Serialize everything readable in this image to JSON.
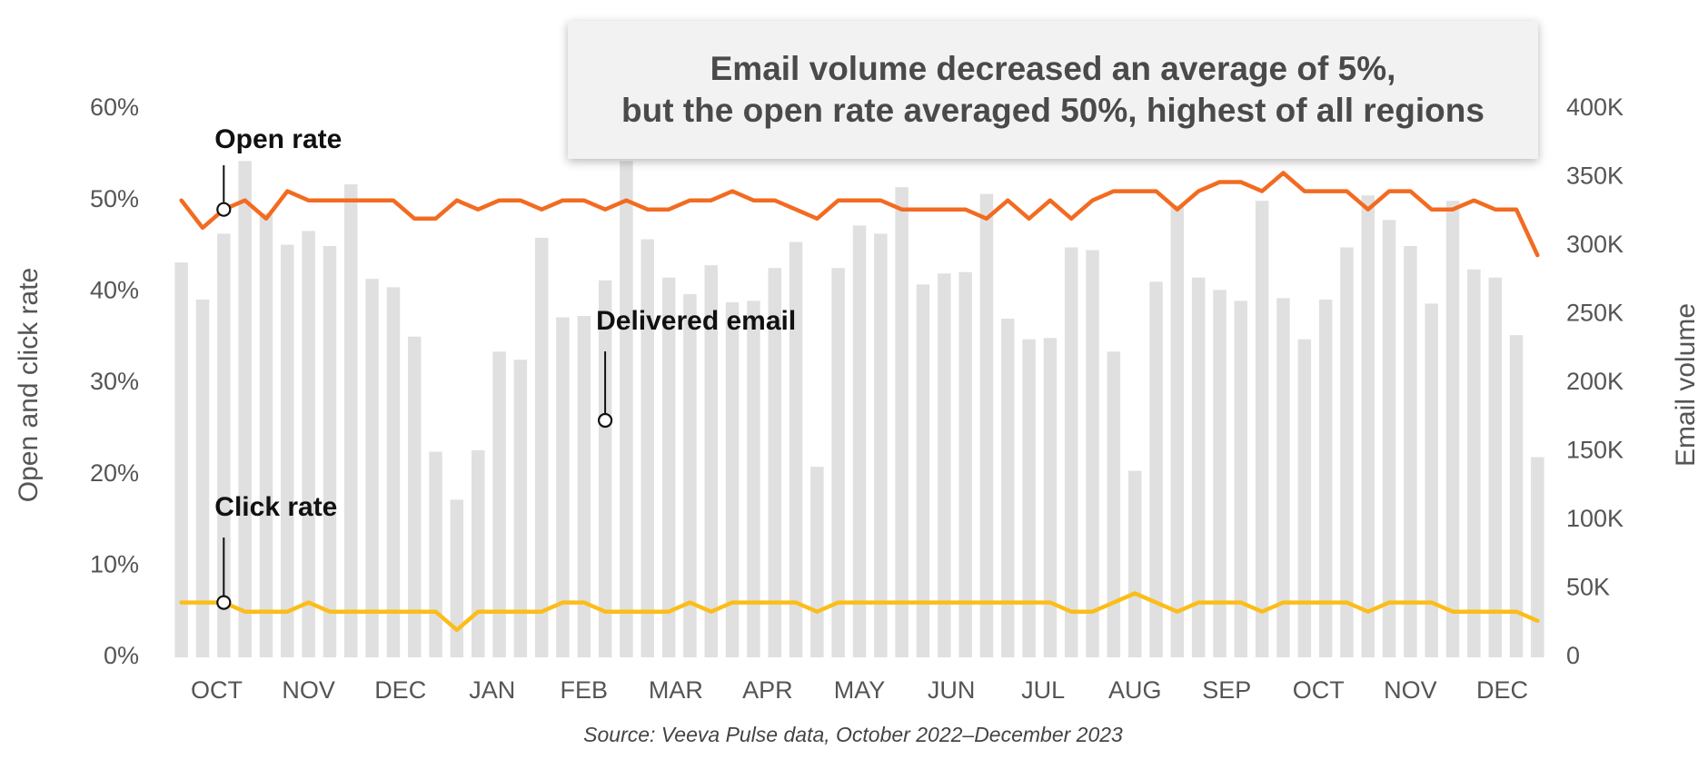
{
  "callout": {
    "line1": "Email volume decreased an average of 5%,",
    "line2": "but the open rate averaged 50%, highest of all regions"
  },
  "source": "Source: Veeva Pulse data, October 2022–December 2023",
  "colors": {
    "open_rate": "#f26b21",
    "click_rate": "#fbbd18",
    "bars": "#e0e0e0",
    "callout_bg": "#f2f2f2"
  },
  "chart_data": {
    "type": "bar",
    "title": "",
    "xlabel": "",
    "ylabel": "Open and click rate",
    "ylabel_right": "Email volume",
    "ylim": [
      0,
      0.6
    ],
    "ylim_right": [
      0,
      400000
    ],
    "y_ticks": [
      "0%",
      "10%",
      "20%",
      "30%",
      "40%",
      "50%",
      "60%"
    ],
    "y_ticks_right": [
      "0",
      "50K",
      "100K",
      "150K",
      "200K",
      "250K",
      "300K",
      "350K",
      "400K"
    ],
    "x_month_labels": [
      "OCT",
      "NOV",
      "DEC",
      "JAN",
      "FEB",
      "MAR",
      "APR",
      "MAY",
      "JUN",
      "JUL",
      "AUG",
      "SEP",
      "OCT",
      "NOV",
      "DEC"
    ],
    "grid": false,
    "legend": "none",
    "series": [
      {
        "name": "Delivered email",
        "type": "bar",
        "axis": "right",
        "values": [
          288000,
          261000,
          309000,
          362000,
          324000,
          301000,
          311000,
          300000,
          345000,
          276000,
          270000,
          234000,
          150000,
          115000,
          151000,
          223000,
          217000,
          306000,
          248000,
          249000,
          275000,
          362000,
          305000,
          277000,
          265000,
          286000,
          259000,
          260000,
          284000,
          303000,
          139000,
          284000,
          315000,
          309000,
          343000,
          272000,
          280000,
          281000,
          338000,
          247000,
          232000,
          233000,
          299000,
          297000,
          223000,
          136000,
          274000,
          330000,
          277000,
          268000,
          260000,
          333000,
          262000,
          232000,
          261000,
          299000,
          337000,
          319000,
          300000,
          258000,
          333000,
          283000,
          277000,
          235000,
          146000
        ]
      },
      {
        "name": "Open rate",
        "type": "line",
        "axis": "left",
        "values": [
          0.5,
          0.47,
          0.49,
          0.5,
          0.48,
          0.51,
          0.5,
          0.5,
          0.5,
          0.5,
          0.5,
          0.48,
          0.48,
          0.5,
          0.49,
          0.5,
          0.5,
          0.49,
          0.5,
          0.5,
          0.49,
          0.5,
          0.49,
          0.49,
          0.5,
          0.5,
          0.51,
          0.5,
          0.5,
          0.49,
          0.48,
          0.5,
          0.5,
          0.5,
          0.49,
          0.49,
          0.49,
          0.49,
          0.48,
          0.5,
          0.48,
          0.5,
          0.48,
          0.5,
          0.51,
          0.51,
          0.51,
          0.49,
          0.51,
          0.52,
          0.52,
          0.51,
          0.53,
          0.51,
          0.51,
          0.51,
          0.49,
          0.51,
          0.51,
          0.49,
          0.49,
          0.5,
          0.49,
          0.49,
          0.44
        ]
      },
      {
        "name": "Click rate",
        "type": "line",
        "axis": "left",
        "values": [
          0.06,
          0.06,
          0.06,
          0.05,
          0.05,
          0.05,
          0.06,
          0.05,
          0.05,
          0.05,
          0.05,
          0.05,
          0.05,
          0.03,
          0.05,
          0.05,
          0.05,
          0.05,
          0.06,
          0.06,
          0.05,
          0.05,
          0.05,
          0.05,
          0.06,
          0.05,
          0.06,
          0.06,
          0.06,
          0.06,
          0.05,
          0.06,
          0.06,
          0.06,
          0.06,
          0.06,
          0.06,
          0.06,
          0.06,
          0.06,
          0.06,
          0.06,
          0.05,
          0.05,
          0.06,
          0.07,
          0.06,
          0.05,
          0.06,
          0.06,
          0.06,
          0.05,
          0.06,
          0.06,
          0.06,
          0.06,
          0.05,
          0.06,
          0.06,
          0.06,
          0.05,
          0.05,
          0.05,
          0.05,
          0.04
        ]
      }
    ],
    "annotations": [
      {
        "label": "Open rate",
        "series": "Open rate",
        "index": 2
      },
      {
        "label": "Click rate",
        "series": "Click rate",
        "index": 2
      },
      {
        "label": "Delivered email",
        "series": "Delivered email",
        "index": 20
      }
    ]
  }
}
